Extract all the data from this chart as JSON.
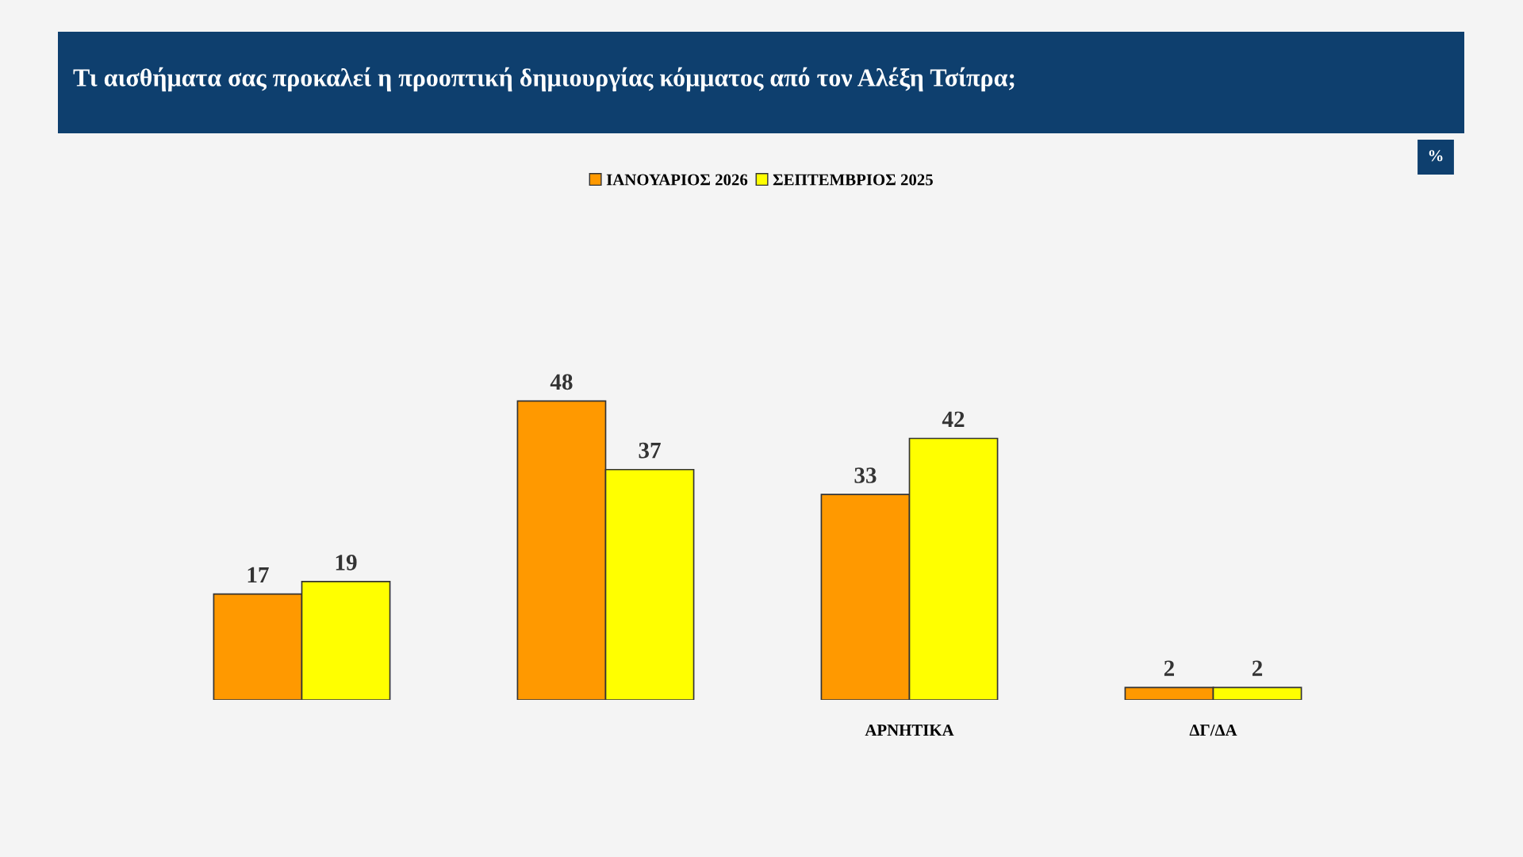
{
  "chart_data": {
    "type": "bar",
    "title": "Τι αισθήματα σας προκαλεί η προοπτική δημιουργίας κόμματος από τον Αλέξη Τσίπρα;",
    "categories": [
      null,
      null,
      "ΑΡΝΗΤΙΚΑ",
      "ΔΓ/ΔΑ"
    ],
    "series": [
      {
        "name": "ΙΑΝΟΥΑΡΙΟΣ 2026",
        "color": "#ff9900",
        "values": [
          17,
          48,
          33,
          2
        ]
      },
      {
        "name": "ΣΕΠΤΕΜΒΡΙΟΣ 2025",
        "color": "#ffff00",
        "values": [
          19,
          37,
          42,
          2
        ]
      }
    ],
    "data_labels": true,
    "legend": "top",
    "tick_labels": "x",
    "grid": false,
    "annotations": [
      "%"
    ]
  }
}
